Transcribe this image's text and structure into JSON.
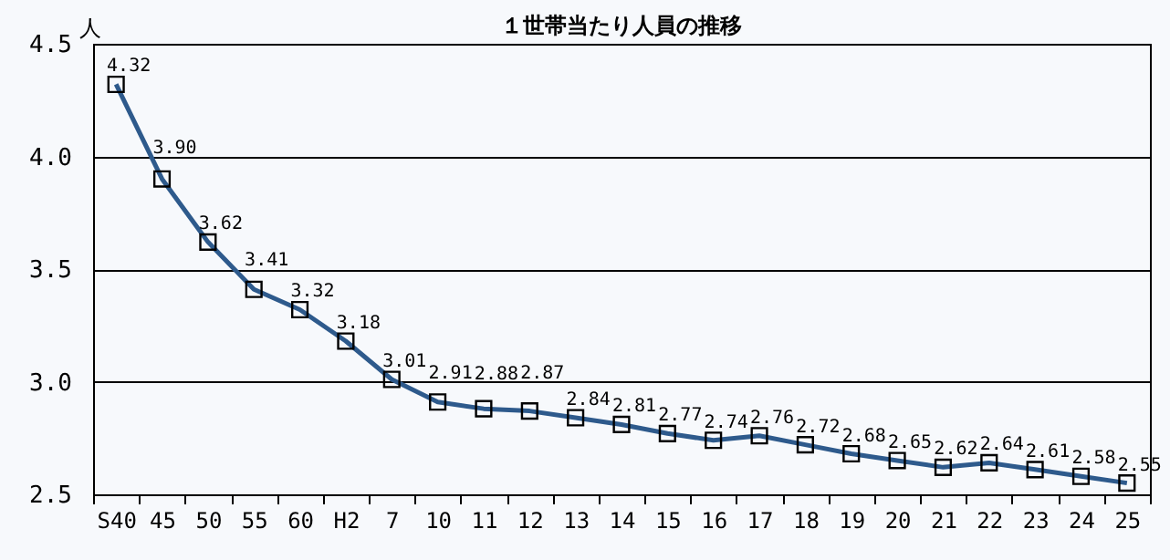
{
  "chart_data": {
    "type": "line",
    "title": "１世帯当たり人員の推移",
    "ylabel": "人",
    "categories": [
      "S40",
      "45",
      "50",
      "55",
      "60",
      "H2",
      "7",
      "10",
      "11",
      "12",
      "13",
      "14",
      "15",
      "16",
      "17",
      "18",
      "19",
      "20",
      "21",
      "22",
      "23",
      "24",
      "25"
    ],
    "series": [
      {
        "color": "#2e5a8c",
        "values": [
          4.32,
          3.9,
          3.62,
          3.41,
          3.32,
          3.18,
          3.01,
          2.91,
          2.88,
          2.87,
          2.84,
          2.81,
          2.77,
          2.74,
          2.76,
          2.72,
          2.68,
          2.65,
          2.62,
          2.64,
          2.61,
          2.58,
          2.55
        ]
      }
    ],
    "value_labels": [
      "4.32",
      "3.90",
      "3.62",
      "3.41",
      "3.32",
      "3.18",
      "3.01",
      "2.91",
      "2.88",
      "2.87",
      "2.84",
      "2.81",
      "2.77",
      "2.74",
      "2.76",
      "2.72",
      "2.68",
      "2.65",
      "2.62",
      "2.64",
      "2.61",
      "2.58",
      "2.55"
    ],
    "ylim": [
      2.5,
      4.5
    ],
    "yticks": [
      {
        "value": 2.5,
        "label": "2.5"
      },
      {
        "value": 3,
        "label": "3.0"
      },
      {
        "value": 3.5,
        "label": "3.5"
      },
      {
        "value": 4,
        "label": "4.0"
      },
      {
        "value": 4.5,
        "label": "4.5"
      }
    ],
    "grid": "y",
    "marker": "square",
    "line_style": "solid",
    "legend": false
  }
}
